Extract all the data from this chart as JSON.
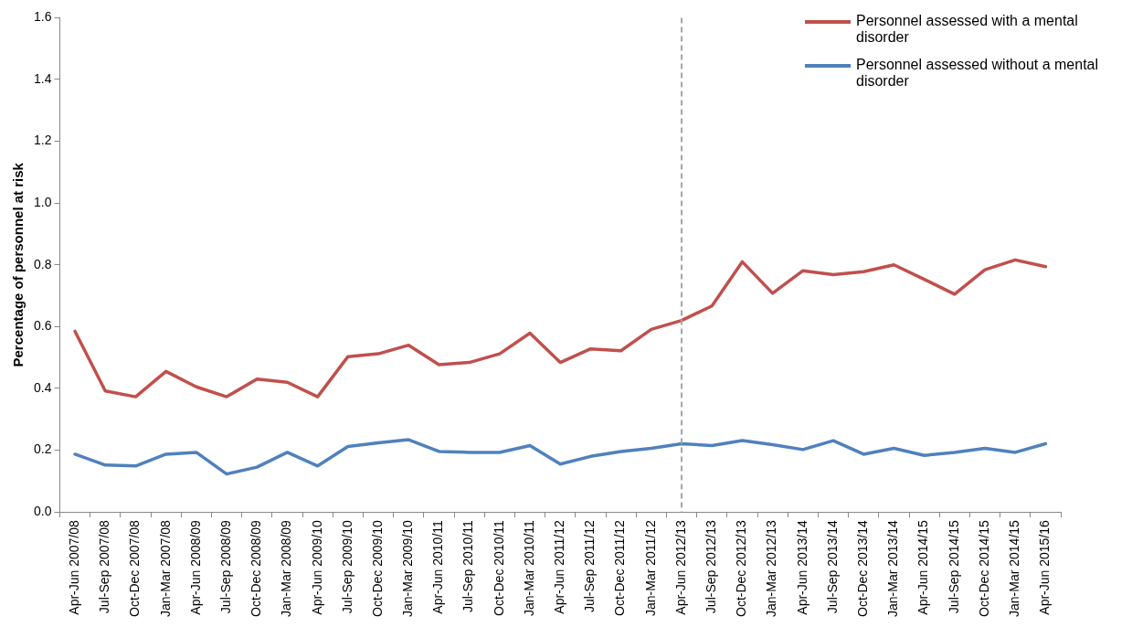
{
  "chart_data": {
    "type": "line",
    "ylabel": "Percentage of personnel at risk",
    "categories": [
      "Apr-Jun 2007/08",
      "Jul-Sep 2007/08",
      "Oct-Dec 2007/08",
      "Jan-Mar 2007/08",
      "Apr-Jun 2008/09",
      "Jul-Sep 2008/09",
      "Oct-Dec 2008/09",
      "Jan-Mar 2008/09",
      "Apr-Jun 2009/10",
      "Jul-Sep 2009/10",
      "Oct-Dec 2009/10",
      "Jan-Mar 2009/10",
      "Apr-Jun 2010/11",
      "Jul-Sep 2010/11",
      "Oct-Dec 2010/11",
      "Jan-Mar 2010/11",
      "Apr-Jun 2011/12",
      "Jul-Sep 2011/12",
      "Oct-Dec 2011/12",
      "Jan-Mar 2011/12",
      "Apr-Jun 2012/13",
      "Jul-Sep 2012/13",
      "Oct-Dec 2012/13",
      "Jan-Mar 2012/13",
      "Apr-Jun 2013/14",
      "Jul-Sep 2013/14",
      "Oct-Dec 2013/14",
      "Jan-Mar 2013/14",
      "Apr-Jun 2014/15",
      "Jul-Sep 2014/15",
      "Oct-Dec 2014/15",
      "Jan-Mar 2014/15",
      "Apr-Jun 2015/16"
    ],
    "series": [
      {
        "name": "Personnel assessed with a mental disorder",
        "color": "#c0504d",
        "values": [
          0.585,
          0.392,
          0.373,
          0.455,
          0.405,
          0.373,
          0.43,
          0.42,
          0.373,
          0.503,
          0.512,
          0.54,
          0.477,
          0.484,
          0.512,
          0.579,
          0.484,
          0.528,
          0.522,
          0.591,
          0.62,
          0.667,
          0.81,
          0.708,
          0.781,
          0.768,
          0.778,
          0.8,
          0.753,
          0.705,
          0.784,
          0.816,
          0.794
        ]
      },
      {
        "name": "Personnel assessed without a mental disorder",
        "color": "#4f81bd",
        "values": [
          0.187,
          0.152,
          0.149,
          0.187,
          0.193,
          0.123,
          0.145,
          0.193,
          0.149,
          0.212,
          0.224,
          0.234,
          0.196,
          0.193,
          0.193,
          0.215,
          0.155,
          0.18,
          0.196,
          0.206,
          0.221,
          0.215,
          0.231,
          0.218,
          0.202,
          0.231,
          0.187,
          0.206,
          0.183,
          0.193,
          0.206,
          0.193,
          0.221
        ]
      }
    ],
    "ylim": [
      0,
      1.6
    ],
    "yticks": [
      {
        "value": 0,
        "label": "0.0"
      },
      {
        "value": 0.2,
        "label": "0.2"
      },
      {
        "value": 0.4,
        "label": "0.4"
      },
      {
        "value": 0.6,
        "label": "0.6"
      },
      {
        "value": 0.8,
        "label": "0.8"
      },
      {
        "value": 1,
        "label": "1.0"
      },
      {
        "value": 1.2,
        "label": "1.2"
      },
      {
        "value": 1.4,
        "label": "1.4"
      },
      {
        "value": 1.6,
        "label": "1.6"
      }
    ],
    "ref_lines": [
      {
        "axis": "x",
        "value": "Apr-Jun 2012/13",
        "color": "#a6a6a6",
        "line_style": "dashed"
      }
    ],
    "legend": "top right",
    "grid": false,
    "marker": "none",
    "line_style": "solid"
  }
}
